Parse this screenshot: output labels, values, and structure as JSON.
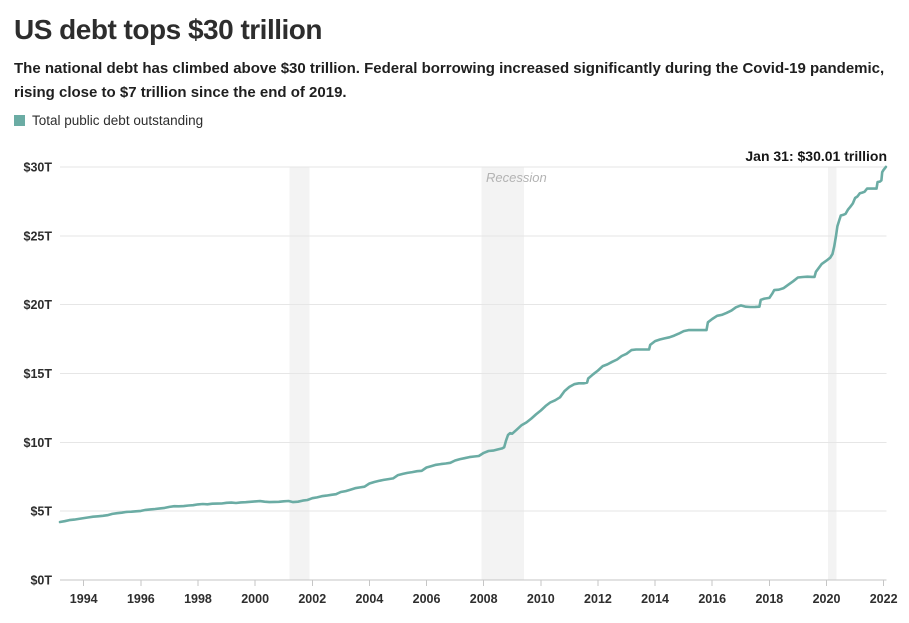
{
  "header": {
    "title": "US debt tops $30 trillion",
    "subtitle_line1": "The national debt has climbed above $30 trillion. Federal borrowing increased significantly during the Covid-19 pandemic,",
    "subtitle_line2": "rising close to $7 trillion since the end of 2019."
  },
  "legend": {
    "label": "Total public debt outstanding",
    "swatch_color": "#6BACA4"
  },
  "annotation": "Jan 31: $30.01 trillion",
  "recession_label": "Recession",
  "colors": {
    "line": "#6BACA4",
    "recession_band": "#f3f3f3",
    "gridline": "#e6e6e6",
    "axis": "#c6c6c6",
    "tick_text": "#2e2e2e"
  },
  "chart_data": {
    "type": "line",
    "title": "US debt tops $30 trillion",
    "series_name": "Total public debt outstanding",
    "unit": "trillions of US dollars",
    "xlim": [
      1993.17,
      2022.1
    ],
    "ylim": [
      0,
      30
    ],
    "x_ticks": [
      1994,
      1996,
      1998,
      2000,
      2002,
      2004,
      2006,
      2008,
      2010,
      2012,
      2014,
      2016,
      2018,
      2020,
      2022
    ],
    "y_ticks": [
      0,
      5,
      10,
      15,
      20,
      25,
      30
    ],
    "y_tick_labels": [
      "$0T",
      "$5T",
      "$10T",
      "$15T",
      "$20T",
      "$25T",
      "$30T"
    ],
    "grid": true,
    "legend_position": "top-left",
    "end_label": "Jan 31: $30.01 trillion",
    "end_value": 30.01,
    "recession_bands": [
      [
        2001.2,
        2001.9
      ],
      [
        2007.92,
        2009.42
      ],
      [
        2020.05,
        2020.35
      ]
    ],
    "points": [
      [
        1993.17,
        4.21
      ],
      [
        1993.33,
        4.27
      ],
      [
        1993.5,
        4.35
      ],
      [
        1993.67,
        4.39
      ],
      [
        1993.83,
        4.44
      ],
      [
        1994.0,
        4.5
      ],
      [
        1994.17,
        4.55
      ],
      [
        1994.33,
        4.6
      ],
      [
        1994.5,
        4.63
      ],
      [
        1994.67,
        4.66
      ],
      [
        1994.83,
        4.71
      ],
      [
        1995.0,
        4.8
      ],
      [
        1995.17,
        4.85
      ],
      [
        1995.33,
        4.89
      ],
      [
        1995.5,
        4.95
      ],
      [
        1995.67,
        4.96
      ],
      [
        1995.83,
        4.99
      ],
      [
        1996.0,
        5.02
      ],
      [
        1996.17,
        5.09
      ],
      [
        1996.33,
        5.13
      ],
      [
        1996.5,
        5.16
      ],
      [
        1996.67,
        5.2
      ],
      [
        1996.83,
        5.24
      ],
      [
        1997.0,
        5.31
      ],
      [
        1997.17,
        5.36
      ],
      [
        1997.33,
        5.35
      ],
      [
        1997.5,
        5.37
      ],
      [
        1997.67,
        5.41
      ],
      [
        1997.83,
        5.43
      ],
      [
        1998.0,
        5.49
      ],
      [
        1998.17,
        5.52
      ],
      [
        1998.33,
        5.5
      ],
      [
        1998.5,
        5.54
      ],
      [
        1998.67,
        5.55
      ],
      [
        1998.83,
        5.56
      ],
      [
        1999.0,
        5.61
      ],
      [
        1999.17,
        5.62
      ],
      [
        1999.33,
        5.59
      ],
      [
        1999.5,
        5.64
      ],
      [
        1999.67,
        5.65
      ],
      [
        1999.83,
        5.68
      ],
      [
        2000.0,
        5.71
      ],
      [
        2000.17,
        5.73
      ],
      [
        2000.33,
        5.69
      ],
      [
        2000.5,
        5.66
      ],
      [
        2000.67,
        5.67
      ],
      [
        2000.83,
        5.68
      ],
      [
        2001.0,
        5.72
      ],
      [
        2001.17,
        5.74
      ],
      [
        2001.33,
        5.66
      ],
      [
        2001.5,
        5.69
      ],
      [
        2001.67,
        5.77
      ],
      [
        2001.83,
        5.81
      ],
      [
        2002.0,
        5.94
      ],
      [
        2002.17,
        6.0
      ],
      [
        2002.33,
        6.09
      ],
      [
        2002.5,
        6.13
      ],
      [
        2002.67,
        6.19
      ],
      [
        2002.83,
        6.23
      ],
      [
        2003.0,
        6.39
      ],
      [
        2003.17,
        6.46
      ],
      [
        2003.33,
        6.56
      ],
      [
        2003.5,
        6.67
      ],
      [
        2003.67,
        6.73
      ],
      [
        2003.83,
        6.78
      ],
      [
        2004.0,
        7.01
      ],
      [
        2004.17,
        7.12
      ],
      [
        2004.33,
        7.2
      ],
      [
        2004.5,
        7.27
      ],
      [
        2004.67,
        7.33
      ],
      [
        2004.83,
        7.38
      ],
      [
        2005.0,
        7.62
      ],
      [
        2005.17,
        7.71
      ],
      [
        2005.33,
        7.78
      ],
      [
        2005.5,
        7.84
      ],
      [
        2005.67,
        7.9
      ],
      [
        2005.83,
        7.93
      ],
      [
        2006.0,
        8.17
      ],
      [
        2006.17,
        8.27
      ],
      [
        2006.33,
        8.37
      ],
      [
        2006.5,
        8.42
      ],
      [
        2006.67,
        8.46
      ],
      [
        2006.83,
        8.51
      ],
      [
        2007.0,
        8.68
      ],
      [
        2007.17,
        8.78
      ],
      [
        2007.33,
        8.85
      ],
      [
        2007.5,
        8.93
      ],
      [
        2007.67,
        8.97
      ],
      [
        2007.83,
        9.01
      ],
      [
        2008.0,
        9.23
      ],
      [
        2008.17,
        9.37
      ],
      [
        2008.33,
        9.4
      ],
      [
        2008.5,
        9.49
      ],
      [
        2008.65,
        9.56
      ],
      [
        2008.72,
        9.65
      ],
      [
        2008.78,
        10.12
      ],
      [
        2008.85,
        10.53
      ],
      [
        2008.92,
        10.66
      ],
      [
        2009.0,
        10.63
      ],
      [
        2009.17,
        10.95
      ],
      [
        2009.33,
        11.25
      ],
      [
        2009.5,
        11.45
      ],
      [
        2009.67,
        11.73
      ],
      [
        2009.83,
        12.03
      ],
      [
        2010.0,
        12.31
      ],
      [
        2010.17,
        12.65
      ],
      [
        2010.33,
        12.89
      ],
      [
        2010.5,
        13.05
      ],
      [
        2010.67,
        13.27
      ],
      [
        2010.83,
        13.72
      ],
      [
        2011.0,
        14.03
      ],
      [
        2011.17,
        14.22
      ],
      [
        2011.33,
        14.29
      ],
      [
        2011.5,
        14.29
      ],
      [
        2011.62,
        14.34
      ],
      [
        2011.66,
        14.64
      ],
      [
        2011.83,
        14.94
      ],
      [
        2012.0,
        15.22
      ],
      [
        2012.17,
        15.54
      ],
      [
        2012.33,
        15.66
      ],
      [
        2012.5,
        15.85
      ],
      [
        2012.67,
        16.02
      ],
      [
        2012.83,
        16.27
      ],
      [
        2013.0,
        16.43
      ],
      [
        2013.17,
        16.7
      ],
      [
        2013.33,
        16.74
      ],
      [
        2013.5,
        16.74
      ],
      [
        2013.67,
        16.74
      ],
      [
        2013.79,
        16.75
      ],
      [
        2013.83,
        17.08
      ],
      [
        2014.0,
        17.35
      ],
      [
        2014.17,
        17.47
      ],
      [
        2014.33,
        17.55
      ],
      [
        2014.5,
        17.63
      ],
      [
        2014.67,
        17.75
      ],
      [
        2014.83,
        17.9
      ],
      [
        2015.0,
        18.08
      ],
      [
        2015.17,
        18.15
      ],
      [
        2015.33,
        18.15
      ],
      [
        2015.5,
        18.15
      ],
      [
        2015.67,
        18.15
      ],
      [
        2015.8,
        18.15
      ],
      [
        2015.85,
        18.72
      ],
      [
        2016.0,
        18.96
      ],
      [
        2016.17,
        19.19
      ],
      [
        2016.33,
        19.26
      ],
      [
        2016.5,
        19.4
      ],
      [
        2016.67,
        19.57
      ],
      [
        2016.83,
        19.81
      ],
      [
        2017.0,
        19.95
      ],
      [
        2017.17,
        19.85
      ],
      [
        2017.33,
        19.83
      ],
      [
        2017.5,
        19.84
      ],
      [
        2017.65,
        19.85
      ],
      [
        2017.7,
        20.35
      ],
      [
        2017.83,
        20.44
      ],
      [
        2018.0,
        20.49
      ],
      [
        2018.1,
        20.8
      ],
      [
        2018.17,
        21.06
      ],
      [
        2018.33,
        21.09
      ],
      [
        2018.5,
        21.2
      ],
      [
        2018.67,
        21.46
      ],
      [
        2018.83,
        21.7
      ],
      [
        2019.0,
        21.97
      ],
      [
        2019.17,
        22.01
      ],
      [
        2019.33,
        22.03
      ],
      [
        2019.5,
        22.02
      ],
      [
        2019.58,
        22.02
      ],
      [
        2019.63,
        22.39
      ],
      [
        2019.83,
        22.95
      ],
      [
        2020.0,
        23.2
      ],
      [
        2020.13,
        23.41
      ],
      [
        2020.21,
        23.69
      ],
      [
        2020.27,
        24.22
      ],
      [
        2020.33,
        24.95
      ],
      [
        2020.38,
        25.7
      ],
      [
        2020.44,
        26.1
      ],
      [
        2020.5,
        26.48
      ],
      [
        2020.58,
        26.52
      ],
      [
        2020.67,
        26.6
      ],
      [
        2020.75,
        26.9
      ],
      [
        2020.83,
        27.1
      ],
      [
        2020.92,
        27.35
      ],
      [
        2021.0,
        27.75
      ],
      [
        2021.08,
        27.86
      ],
      [
        2021.17,
        28.1
      ],
      [
        2021.25,
        28.14
      ],
      [
        2021.33,
        28.2
      ],
      [
        2021.42,
        28.43
      ],
      [
        2021.5,
        28.43
      ],
      [
        2021.58,
        28.43
      ],
      [
        2021.67,
        28.43
      ],
      [
        2021.75,
        28.43
      ],
      [
        2021.79,
        28.91
      ],
      [
        2021.87,
        28.94
      ],
      [
        2021.92,
        29.03
      ],
      [
        2021.95,
        29.62
      ],
      [
        2022.0,
        29.8
      ],
      [
        2022.04,
        29.9
      ],
      [
        2022.08,
        30.01
      ]
    ]
  }
}
